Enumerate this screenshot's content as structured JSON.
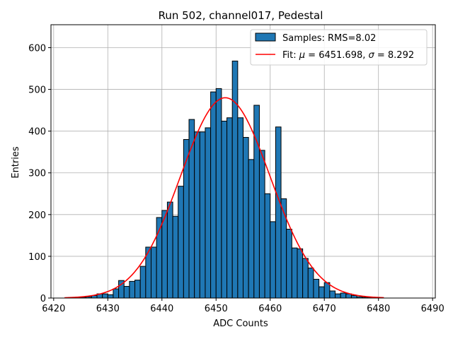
{
  "chart_data": {
    "type": "bar",
    "title": "Run 502, channel017, Pedestal",
    "xlabel": "ADC Counts",
    "ylabel": "Entries",
    "xlim": [
      6419.5,
      6490.5
    ],
    "ylim": [
      0,
      655
    ],
    "xticks": [
      6420,
      6430,
      6440,
      6450,
      6460,
      6470,
      6480,
      6490
    ],
    "yticks": [
      0,
      100,
      200,
      300,
      400,
      500,
      600
    ],
    "grid": true,
    "legend_position": "top-right",
    "bar_color": "#1f77b4",
    "fit_color": "#ff0000",
    "series": [
      {
        "name": "Samples: RMS=8.02",
        "bin_start": 6424,
        "bin_width": 1,
        "values": [
          1,
          2,
          3,
          6,
          10,
          10,
          8,
          22,
          42,
          28,
          40,
          43,
          76,
          122,
          122,
          193,
          210,
          230,
          196,
          268,
          380,
          428,
          398,
          398,
          408,
          494,
          502,
          424,
          432,
          568,
          432,
          385,
          332,
          462,
          354,
          250,
          183,
          410,
          238,
          165,
          120,
          118,
          95,
          72,
          45,
          27,
          37,
          17,
          10,
          12,
          10,
          6,
          3,
          2,
          2,
          1
        ]
      }
    ],
    "fit": {
      "name": "Fit: μ = 6451.698, σ = 8.292",
      "label_prefix": "Fit: ",
      "mu": 6451.698,
      "sigma": 8.292,
      "amplitude": 480,
      "x_range": [
        6422,
        6481
      ]
    }
  }
}
